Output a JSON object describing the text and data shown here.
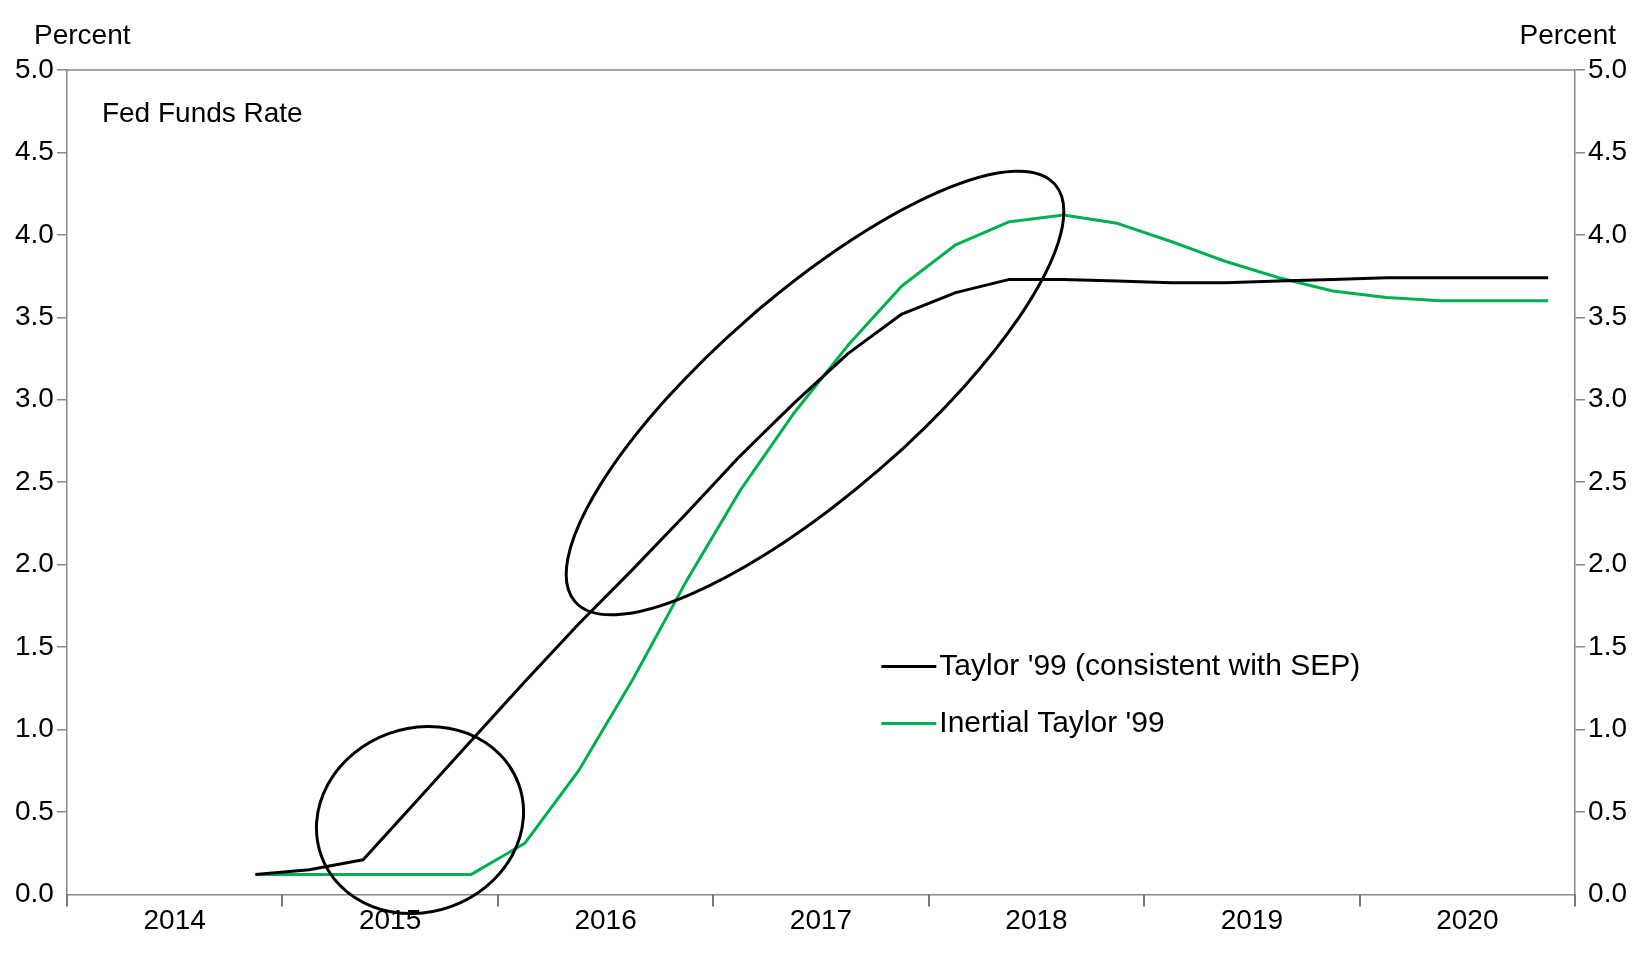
{
  "chart_data": {
    "type": "line",
    "title": "Fed Funds Rate",
    "ylabel": "Percent",
    "y2label": "Percent",
    "marker": "none",
    "legend": "bottom right",
    "x": [
      2014.875,
      2015.125,
      2015.375,
      2015.625,
      2015.875,
      2016.125,
      2016.375,
      2016.625,
      2016.875,
      2017.125,
      2017.375,
      2017.625,
      2017.875,
      2018.125,
      2018.375,
      2018.625,
      2018.875,
      2019.125,
      2019.375,
      2019.625,
      2019.875,
      2020.125,
      2020.375,
      2020.625,
      2020.875
    ],
    "series": [
      {
        "name": "Taylor '99 (consistent with SEP)",
        "color": "#000000",
        "values": [
          0.12,
          0.15,
          0.21,
          0.57,
          0.93,
          1.29,
          1.64,
          1.97,
          2.31,
          2.66,
          2.98,
          3.28,
          3.52,
          3.65,
          3.73,
          3.73,
          3.72,
          3.71,
          3.71,
          3.72,
          3.73,
          3.74,
          3.74,
          3.74,
          3.74
        ]
      },
      {
        "name": "Inertial Taylor '99",
        "color": "#00b050",
        "values": [
          0.12,
          0.12,
          0.12,
          0.12,
          0.12,
          0.31,
          0.75,
          1.3,
          1.9,
          2.45,
          2.92,
          3.33,
          3.69,
          3.94,
          4.08,
          4.12,
          4.07,
          3.96,
          3.84,
          3.74,
          3.66,
          3.62,
          3.6,
          3.6,
          3.6
        ]
      }
    ],
    "xlim": [
      2014,
      2021
    ],
    "xticks": [
      {
        "value": 2014,
        "label": null
      },
      {
        "value": 2014.5,
        "label": "2014"
      },
      {
        "value": 2015,
        "label": null
      },
      {
        "value": 2015.5,
        "label": "2015"
      },
      {
        "value": 2016,
        "label": null
      },
      {
        "value": 2016.5,
        "label": "2016"
      },
      {
        "value": 2017,
        "label": null
      },
      {
        "value": 2017.5,
        "label": "2017"
      },
      {
        "value": 2018,
        "label": null
      },
      {
        "value": 2018.5,
        "label": "2018"
      },
      {
        "value": 2019,
        "label": null
      },
      {
        "value": 2019.5,
        "label": "2019"
      },
      {
        "value": 2020,
        "label": null
      },
      {
        "value": 2020.5,
        "label": "2020"
      },
      {
        "value": 2021,
        "label": null
      }
    ],
    "ylim": [
      0,
      5
    ],
    "yticks": [
      {
        "value": 0,
        "label": "0.0"
      },
      {
        "value": 0.5,
        "label": "0.5"
      },
      {
        "value": 1,
        "label": "1.0"
      },
      {
        "value": 1.5,
        "label": "1.5"
      },
      {
        "value": 2,
        "label": "2.0"
      },
      {
        "value": 2.5,
        "label": "2.5"
      },
      {
        "value": 3,
        "label": "3.0"
      },
      {
        "value": 3.5,
        "label": "3.5"
      },
      {
        "value": 4,
        "label": "4.0"
      },
      {
        "value": 4.5,
        "label": "4.5"
      },
      {
        "value": 5,
        "label": "5.0"
      }
    ],
    "y2lim": [
      0,
      5
    ],
    "y2ticks": [
      {
        "value": 0,
        "label": "0.0"
      },
      {
        "value": 0.5,
        "label": "0.5"
      },
      {
        "value": 1,
        "label": "1.0"
      },
      {
        "value": 1.5,
        "label": "1.5"
      },
      {
        "value": 2,
        "label": "2.0"
      },
      {
        "value": 2.5,
        "label": "2.5"
      },
      {
        "value": 3,
        "label": "3.0"
      },
      {
        "value": 3.5,
        "label": "3.5"
      },
      {
        "value": 4,
        "label": "4.0"
      },
      {
        "value": 4.5,
        "label": "4.5"
      },
      {
        "value": 5,
        "label": "5.0"
      }
    ]
  }
}
